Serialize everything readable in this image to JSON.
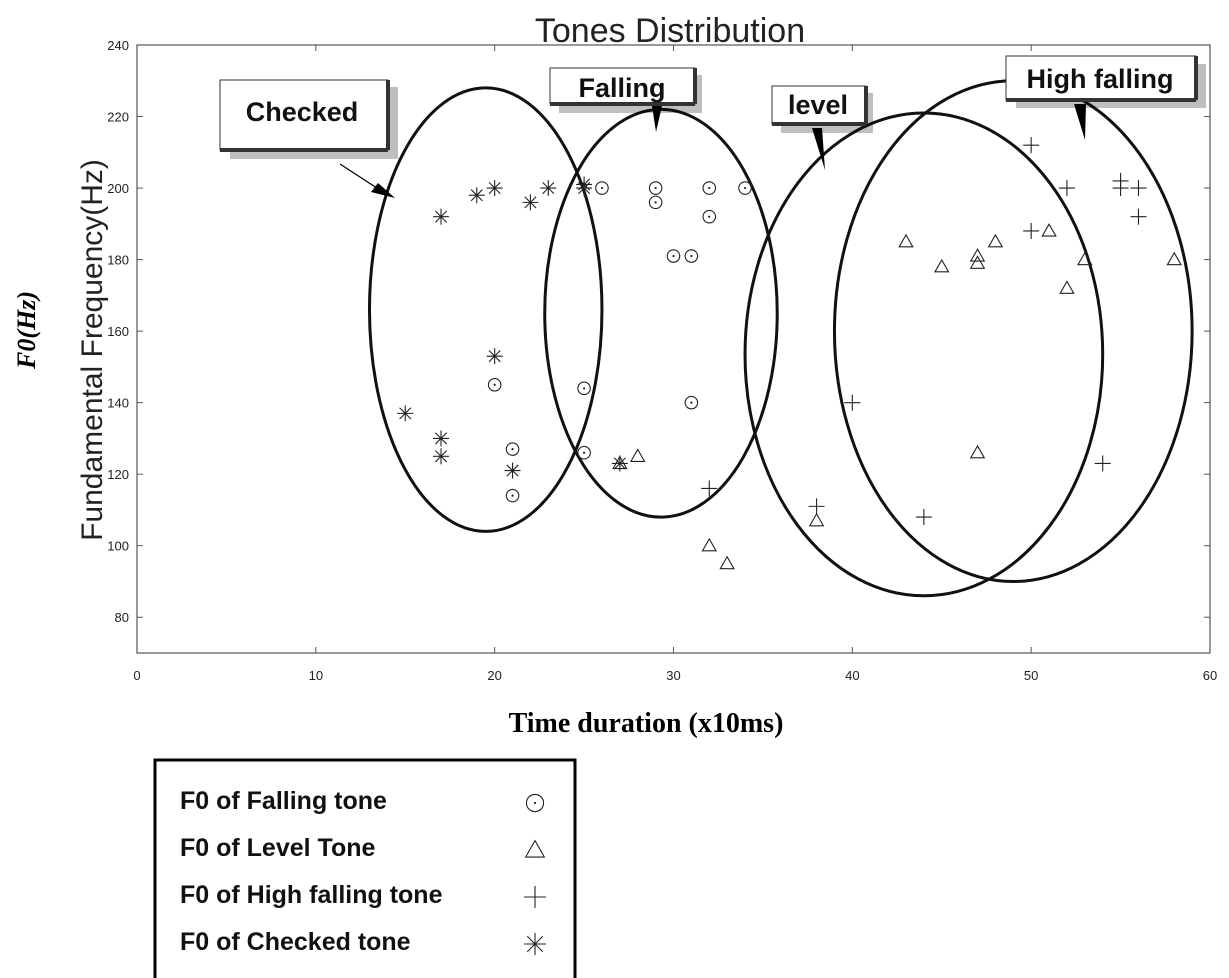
{
  "chart_data": {
    "type": "scatter",
    "title": "Tones Distribution",
    "xlabel": "Time duration (x10ms)",
    "ylabel_inner": "Fundamental Frequency(Hz)",
    "ylabel_outer": "F0(Hz)",
    "xlim": [
      0,
      60
    ],
    "ylim": [
      70,
      240
    ],
    "xticks": [
      0,
      10,
      20,
      30,
      40,
      50,
      60
    ],
    "yticks": [
      80,
      100,
      120,
      140,
      160,
      180,
      200,
      220,
      240
    ],
    "grid": false,
    "series": [
      {
        "name": "F0 of Falling tone",
        "marker": "circle-dot",
        "points": [
          [
            20,
            145
          ],
          [
            21,
            127
          ],
          [
            21,
            114
          ],
          [
            25,
            144
          ],
          [
            25,
            126
          ],
          [
            26,
            200
          ],
          [
            29,
            200
          ],
          [
            29,
            196
          ],
          [
            30,
            181
          ],
          [
            31,
            181
          ],
          [
            31,
            140
          ],
          [
            32,
            200
          ],
          [
            32,
            192
          ],
          [
            34,
            200
          ]
        ]
      },
      {
        "name": "F0 of Level Tone",
        "marker": "triangle",
        "points": [
          [
            27,
            123
          ],
          [
            28,
            125
          ],
          [
            32,
            100
          ],
          [
            33,
            95
          ],
          [
            38,
            107
          ],
          [
            43,
            185
          ],
          [
            45,
            178
          ],
          [
            47,
            181
          ],
          [
            47,
            179
          ],
          [
            47,
            126
          ],
          [
            48,
            185
          ],
          [
            51,
            188
          ],
          [
            52,
            172
          ],
          [
            53,
            180
          ],
          [
            58,
            180
          ]
        ]
      },
      {
        "name": "F0 of High falling tone",
        "marker": "plus",
        "points": [
          [
            32,
            116
          ],
          [
            38,
            111
          ],
          [
            40,
            140
          ],
          [
            44,
            108
          ],
          [
            50,
            212
          ],
          [
            50,
            188
          ],
          [
            52,
            200
          ],
          [
            54,
            123
          ],
          [
            55,
            202
          ],
          [
            55,
            200
          ],
          [
            56,
            200
          ],
          [
            56,
            192
          ]
        ]
      },
      {
        "name": "F0 of Checked tone",
        "marker": "asterisk",
        "points": [
          [
            15,
            137
          ],
          [
            17,
            192
          ],
          [
            17,
            130
          ],
          [
            17,
            125
          ],
          [
            19,
            198
          ],
          [
            20,
            200
          ],
          [
            20,
            153
          ],
          [
            21,
            121
          ],
          [
            22,
            196
          ],
          [
            23,
            200
          ],
          [
            25,
            201
          ],
          [
            25,
            200
          ],
          [
            27,
            123
          ]
        ]
      }
    ],
    "annotations": [
      {
        "label": "Checked",
        "ellipse": {
          "cx": 19.5,
          "cy": 166,
          "rx": 6.5,
          "ry": 62
        }
      },
      {
        "label": "Falling",
        "ellipse": {
          "cx": 29.3,
          "cy": 165,
          "rx": 6.5,
          "ry": 57
        }
      },
      {
        "label": "level",
        "ellipse": {
          "cx": 44,
          "cy": 153.5,
          "rx": 10,
          "ry": 67.5
        }
      },
      {
        "label": "High falling",
        "ellipse": {
          "cx": 49,
          "cy": 160,
          "rx": 10,
          "ry": 70
        }
      }
    ],
    "legend": {
      "placement": "bottom-left",
      "entries": [
        {
          "label": "F0 of Falling tone",
          "marker": "circle-dot"
        },
        {
          "label": "F0 of Level Tone",
          "marker": "triangle"
        },
        {
          "label": "F0 of High falling tone",
          "marker": "plus"
        },
        {
          "label": "F0 of Checked tone",
          "marker": "asterisk"
        }
      ]
    }
  }
}
